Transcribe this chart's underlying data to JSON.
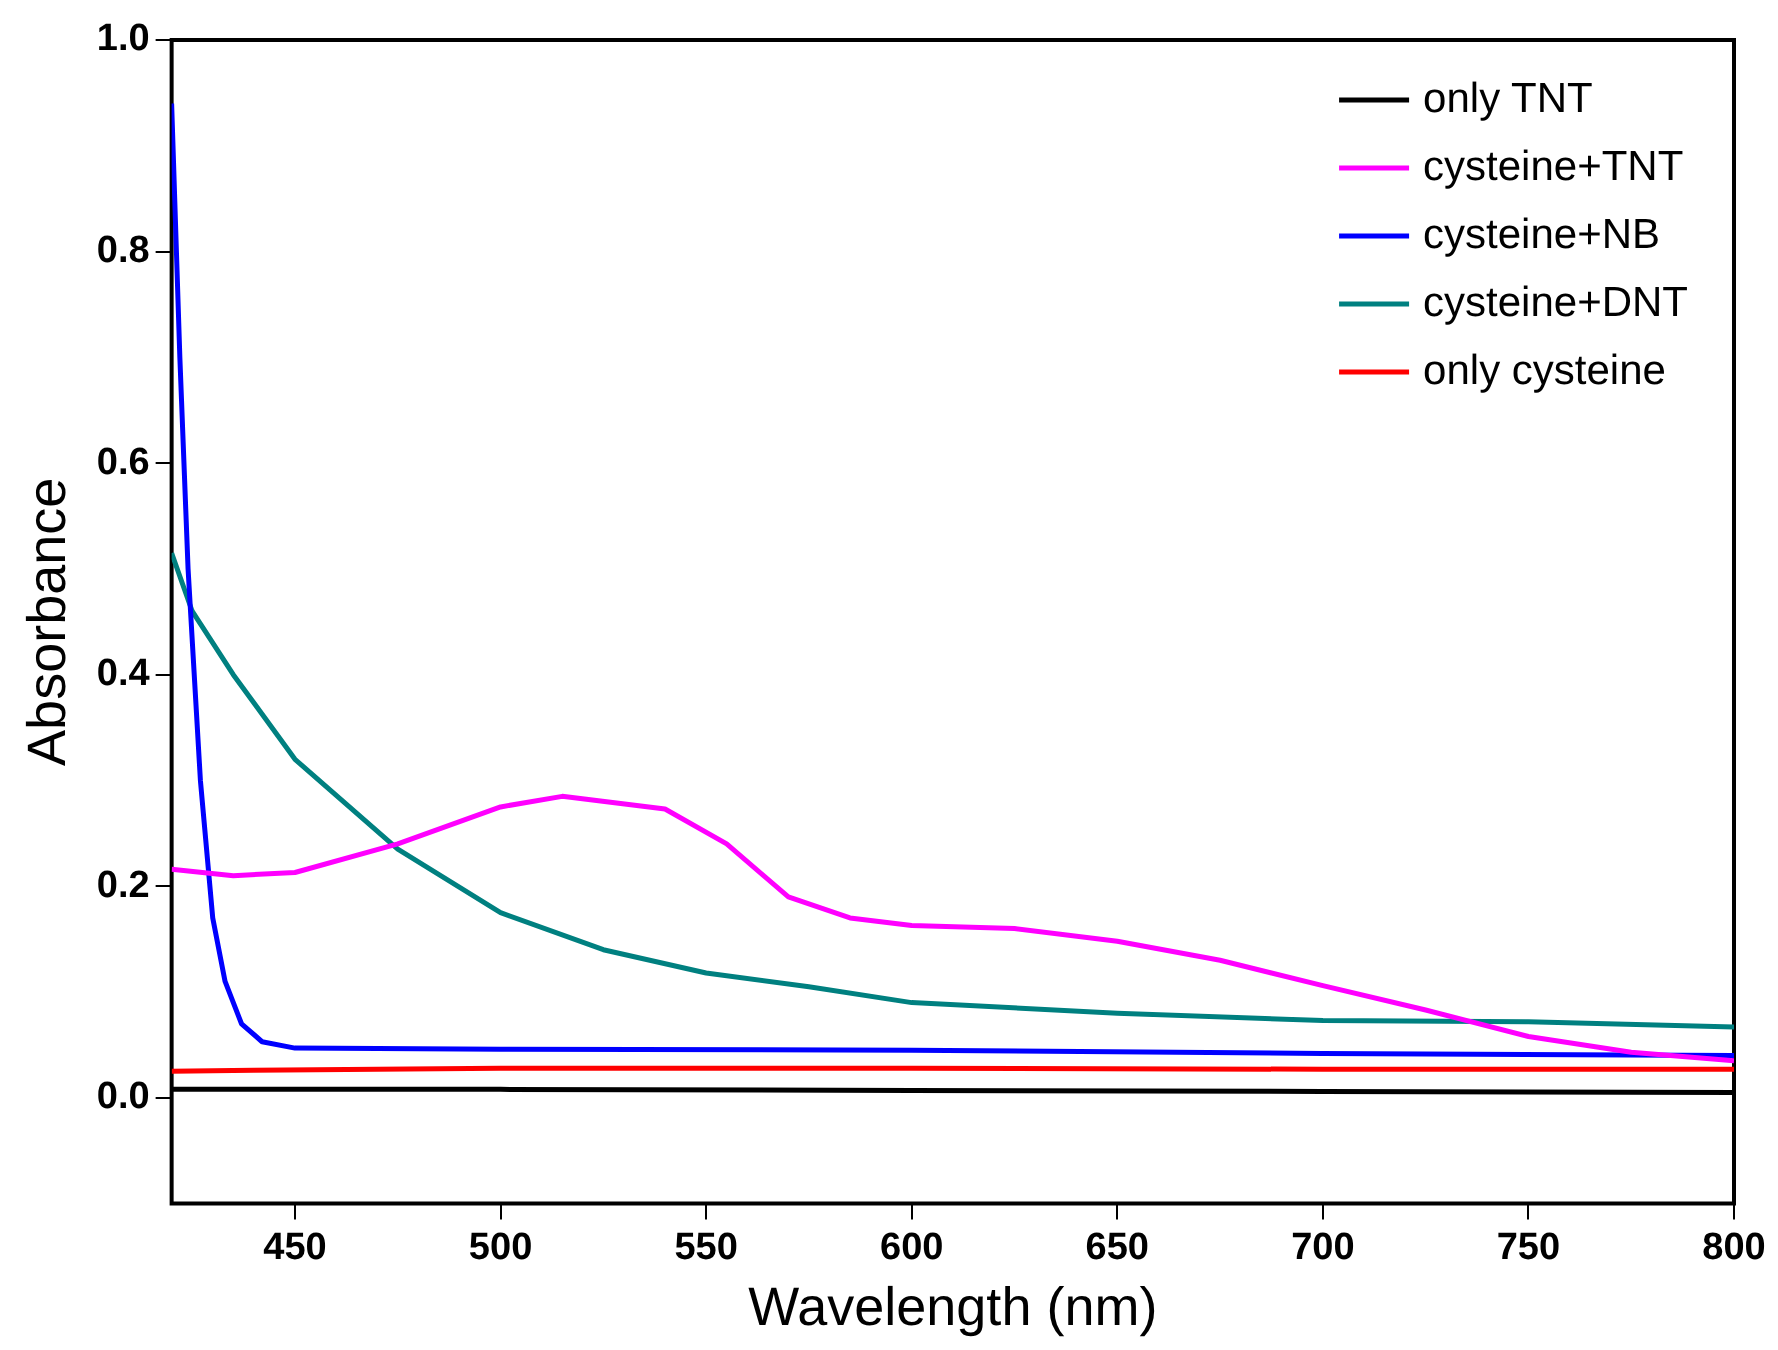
{
  "chart_data": {
    "type": "line",
    "xlabel": "Wavelength (nm)",
    "ylabel": "Absorbance",
    "xlim": [
      420,
      800
    ],
    "xticks": [
      450,
      500,
      550,
      600,
      650,
      700,
      750,
      800
    ],
    "ylim": [
      -0.1,
      1.0
    ],
    "yticks": [
      {
        "value": 0,
        "label": "0.0"
      },
      0.2,
      0.4,
      0.6,
      0.8,
      {
        "value": 1,
        "label": "1.0"
      }
    ],
    "grid": false,
    "legend": "top right",
    "marker": "none",
    "line_style": "solid",
    "series": [
      {
        "name": "only TNT",
        "color": "#000000",
        "x": [
          420,
          500,
          600,
          700,
          800
        ],
        "values": [
          0.008,
          0.008,
          0.007,
          0.006,
          0.005
        ]
      },
      {
        "name": "cysteine+TNT",
        "color": "#ff00ff",
        "x": [
          420,
          435,
          450,
          475,
          500,
          515,
          540,
          555,
          570,
          585,
          600,
          625,
          650,
          675,
          700,
          725,
          750,
          775,
          800
        ],
        "values": [
          0.216,
          0.21,
          0.213,
          0.24,
          0.275,
          0.285,
          0.273,
          0.24,
          0.19,
          0.17,
          0.163,
          0.16,
          0.148,
          0.13,
          0.106,
          0.083,
          0.058,
          0.043,
          0.035
        ]
      },
      {
        "name": "cysteine+NB",
        "color": "#0000ff",
        "x": [
          420,
          422,
          424,
          427,
          430,
          433,
          437,
          442,
          450,
          500,
          600,
          700,
          800
        ],
        "values": [
          0.94,
          0.7,
          0.5,
          0.3,
          0.17,
          0.11,
          0.07,
          0.053,
          0.047,
          0.046,
          0.045,
          0.042,
          0.04
        ]
      },
      {
        "name": "cysteine+DNT",
        "color": "#008080",
        "x": [
          420,
          425,
          435,
          450,
          475,
          500,
          525,
          550,
          575,
          600,
          650,
          700,
          750,
          800
        ],
        "values": [
          0.515,
          0.46,
          0.4,
          0.32,
          0.235,
          0.175,
          0.14,
          0.118,
          0.105,
          0.09,
          0.08,
          0.073,
          0.072,
          0.067
        ]
      },
      {
        "name": "only cysteine",
        "color": "#ff0000",
        "x": [
          420,
          440,
          500,
          600,
          700,
          800
        ],
        "values": [
          0.025,
          0.026,
          0.028,
          0.028,
          0.027,
          0.027
        ]
      }
    ]
  }
}
